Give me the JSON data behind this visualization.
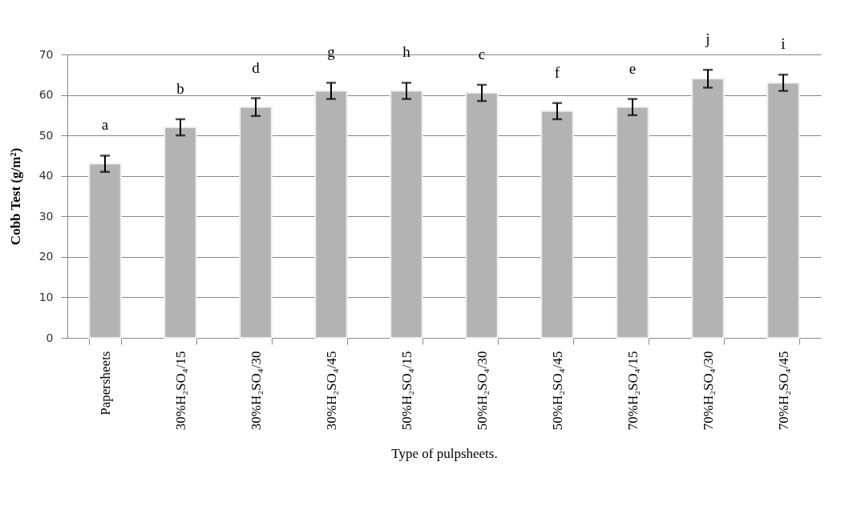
{
  "chart_data": {
    "type": "bar",
    "ylabel": "Cobb Test (g/m²)",
    "xlabel": "Type of pulpsheets.",
    "categories": [
      "Papersheets",
      "30%H₂SO₄/15",
      "30%H₂SO₄/30",
      "30%H₂SO₄/45",
      "50%H₂SO₄/15",
      "50%H₂SO₄/30",
      "50%H₂SO₄/45",
      "70%H₂SO₄/15",
      "70%H₂SO₄/30",
      "70%H₂SO₄/45"
    ],
    "values": [
      43,
      52,
      57,
      61,
      61,
      60.5,
      56,
      57,
      64,
      63
    ],
    "errors": [
      2,
      2,
      2.2,
      2,
      2,
      2,
      2,
      2,
      2.2,
      2
    ],
    "color": "#b3b3b3",
    "annotations": [
      "a",
      "b",
      "d",
      "g",
      "h",
      "c",
      "f",
      "e",
      "j",
      "i"
    ],
    "ylim": [
      0,
      70
    ],
    "yticks": [
      0,
      10,
      20,
      30,
      40,
      50,
      60,
      70
    ],
    "grid": "y"
  }
}
